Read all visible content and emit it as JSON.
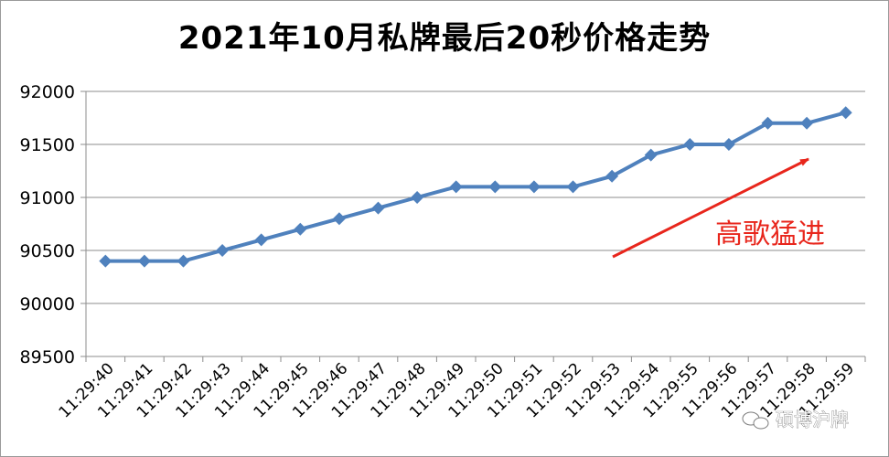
{
  "chart_data": {
    "type": "line",
    "title": "2021年10月私牌最后20秒价格走势",
    "xlabel": "",
    "ylabel": "",
    "categories": [
      "11:29:40",
      "11:29:41",
      "11:29:42",
      "11:29:43",
      "11:29:44",
      "11:29:45",
      "11:29:46",
      "11:29:47",
      "11:29:48",
      "11:29:49",
      "11:29:50",
      "11:29:51",
      "11:29:52",
      "11:29:53",
      "11:29:54",
      "11:29:55",
      "11:29:56",
      "11:29:57",
      "11:29:58",
      "11:29:59"
    ],
    "series": [
      {
        "values": [
          90400,
          90400,
          90400,
          90500,
          90600,
          90700,
          90800,
          90900,
          91000,
          91100,
          91100,
          91100,
          91100,
          91200,
          91400,
          91500,
          91500,
          91700,
          91700,
          91800
        ]
      }
    ],
    "ylim": [
      89500,
      92000
    ],
    "yticks": [
      89500,
      90000,
      90500,
      91000,
      91500,
      92000
    ],
    "grid": true,
    "legend": "none",
    "line_color": "#4f81bd",
    "annotation": {
      "text": "高歌猛进",
      "color": "#e8261c"
    }
  },
  "watermark": {
    "text": "硕博沪牌",
    "icon": "wechat-icon"
  }
}
